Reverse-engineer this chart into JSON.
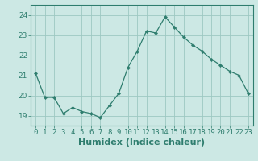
{
  "x": [
    0,
    1,
    2,
    3,
    4,
    5,
    6,
    7,
    8,
    9,
    10,
    11,
    12,
    13,
    14,
    15,
    16,
    17,
    18,
    19,
    20,
    21,
    22,
    23
  ],
  "y": [
    21.1,
    19.9,
    19.9,
    19.1,
    19.4,
    19.2,
    19.1,
    18.9,
    19.5,
    20.1,
    21.4,
    22.2,
    23.2,
    23.1,
    23.9,
    23.4,
    22.9,
    22.5,
    22.2,
    21.8,
    21.5,
    21.2,
    21.0,
    20.1
  ],
  "line_color": "#2e7d6e",
  "marker": "D",
  "marker_size": 2.2,
  "bg_color": "#cce8e4",
  "grid_color": "#9dc8c2",
  "axis_color": "#2e7d6e",
  "xlabel": "Humidex (Indice chaleur)",
  "ylim": [
    18.5,
    24.5
  ],
  "yticks": [
    19,
    20,
    21,
    22,
    23,
    24
  ],
  "xticks": [
    0,
    1,
    2,
    3,
    4,
    5,
    6,
    7,
    8,
    9,
    10,
    11,
    12,
    13,
    14,
    15,
    16,
    17,
    18,
    19,
    20,
    21,
    22,
    23
  ],
  "tick_fontsize": 6.5,
  "xlabel_fontsize": 8.0
}
